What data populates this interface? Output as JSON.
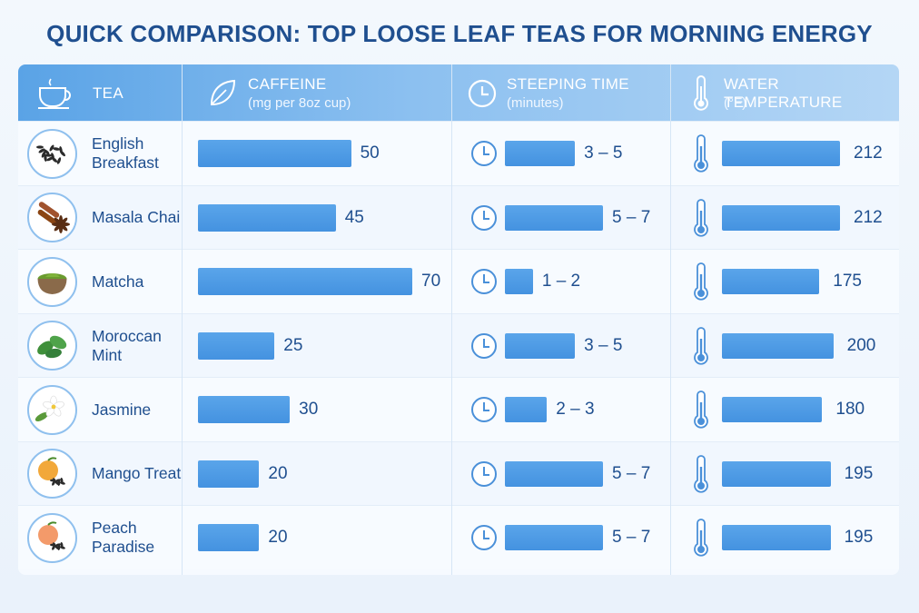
{
  "title": "QUICK COMPARISON: TOP LOOSE LEAF TEAS FOR MORNING ENERGY",
  "headers": {
    "tea": "TEA",
    "caffeine": "CAFFEINE",
    "caffeine_unit": "(mg per 8oz cup)",
    "steeping": "STEEPING TIME",
    "steeping_unit": "(minutes)",
    "water": "WATER TEMPERATURE",
    "water_unit": "(°F)"
  },
  "icons": {
    "tea": "teacup-icon",
    "caffeine": "leaf-icon",
    "steeping": "clock-icon",
    "water": "thermometer-icon"
  },
  "colors": {
    "accent": "#4492e0",
    "title": "#1f4f8f",
    "header_start": "#5aa3e6",
    "header_end": "#b4d6f5"
  },
  "chart_data": {
    "type": "table",
    "title": "QUICK COMPARISON: TOP LOOSE LEAF TEAS FOR MORNING ENERGY",
    "columns": [
      "TEA",
      "CAFFEINE (mg per 8oz cup)",
      "STEEPING TIME (minutes)",
      "WATER TEMPERATURE (°F)"
    ],
    "rows": [
      {
        "tea": "English Breakfast",
        "caffeine": 50,
        "steep": "3 – 5",
        "steep_max": 5,
        "temp": 212
      },
      {
        "tea": "Masala Chai",
        "caffeine": 45,
        "steep": "5 – 7",
        "steep_max": 7,
        "temp": 212
      },
      {
        "tea": "Matcha",
        "caffeine": 70,
        "steep": "1 – 2",
        "steep_max": 2,
        "temp": 175
      },
      {
        "tea": "Moroccan Mint",
        "caffeine": 25,
        "steep": "3 – 5",
        "steep_max": 5,
        "temp": 200
      },
      {
        "tea": "Jasmine",
        "caffeine": 30,
        "steep": "2 – 3",
        "steep_max": 3,
        "temp": 180
      },
      {
        "tea": "Mango Treat",
        "caffeine": 20,
        "steep": "5 – 7",
        "steep_max": 7,
        "temp": 195
      },
      {
        "tea": "Peach Paradise",
        "caffeine": 20,
        "steep": "5 – 7",
        "steep_max": 7,
        "temp": 195
      }
    ],
    "tea_icons": [
      "black-tea-leaves-icon",
      "cinnamon-star-anise-icon",
      "matcha-bowl-icon",
      "mint-leaves-icon",
      "jasmine-flower-icon",
      "mango-tea-icon",
      "peach-tea-icon"
    ],
    "caffeine_range": [
      0,
      70
    ],
    "steep_range": [
      0,
      7
    ],
    "temp_range": [
      0,
      212
    ]
  }
}
